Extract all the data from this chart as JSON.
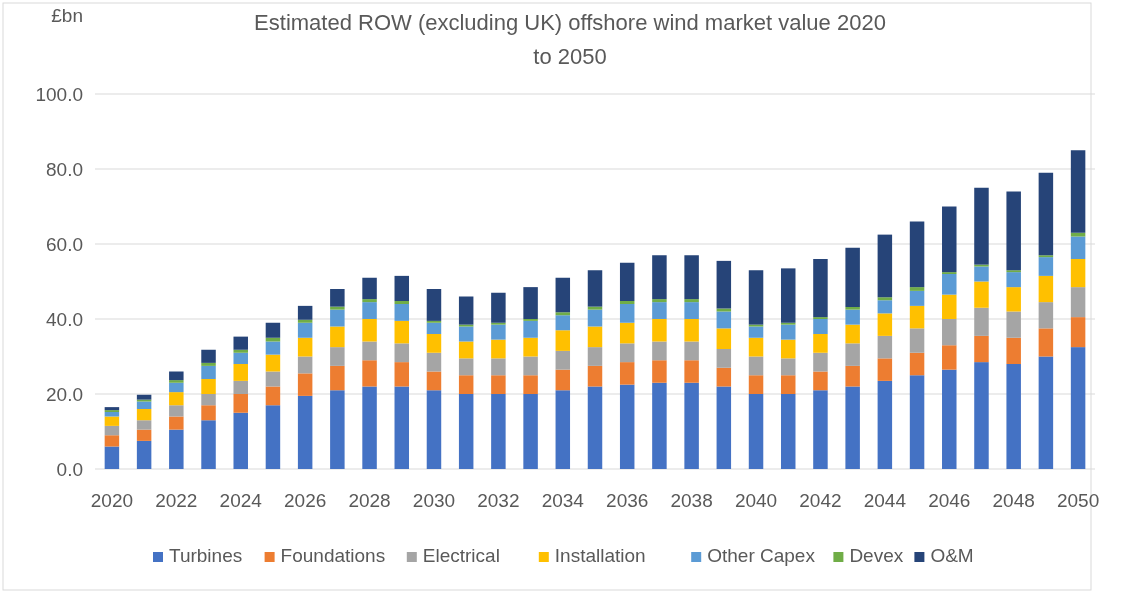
{
  "chart_data": {
    "type": "bar",
    "stacked": true,
    "title": "Estimated ROW (excluding UK) offshore wind market value 2020 to 2050",
    "ylabel": "£bn",
    "categories": [
      "2020",
      null,
      "2022",
      null,
      "2024",
      null,
      "2026",
      null,
      "2028",
      null,
      "2030",
      null,
      "2032",
      null,
      "2034",
      null,
      "2036",
      null,
      "2038",
      null,
      "2040",
      null,
      "2042",
      null,
      "2044",
      null,
      "2046",
      null,
      "2048",
      null,
      "2050"
    ],
    "series": [
      {
        "name": "Turbines",
        "color": "#4472c4",
        "values": [
          6,
          7.5,
          10.5,
          13,
          15,
          17,
          19.5,
          21,
          22,
          22,
          21,
          20,
          20,
          20,
          21,
          22,
          22.5,
          23,
          23,
          22,
          20,
          20,
          21,
          22,
          23.5,
          25,
          26.5,
          28.5,
          28,
          30,
          32.5
        ]
      },
      {
        "name": "Foundations",
        "color": "#ed7d31",
        "values": [
          3,
          3,
          3.5,
          4,
          5,
          5,
          6,
          6.5,
          7,
          6.5,
          5,
          5,
          5,
          5,
          5.5,
          5.5,
          6,
          6,
          6,
          5,
          5,
          5,
          5,
          5.5,
          6,
          6,
          6.5,
          7,
          7,
          7.5,
          8
        ]
      },
      {
        "name": "Electrical",
        "color": "#a5a5a5",
        "values": [
          2.5,
          2.5,
          3,
          3,
          3.5,
          4,
          4.5,
          5,
          5,
          5,
          5,
          4.5,
          4.5,
          5,
          5,
          5,
          5,
          5,
          5,
          5,
          5,
          4.5,
          5,
          6,
          6,
          6.5,
          7,
          7.5,
          7,
          7,
          8
        ]
      },
      {
        "name": "Installation",
        "color": "#ffc000",
        "values": [
          2.5,
          3,
          3.5,
          4,
          4.5,
          4.5,
          5,
          5.5,
          6,
          6,
          5,
          4.5,
          5,
          5,
          5.5,
          5.5,
          5.5,
          6,
          6,
          5.5,
          5,
          5,
          5,
          5,
          6,
          6,
          6.5,
          7,
          6.5,
          7,
          7.5
        ]
      },
      {
        "name": "Other Capex",
        "color": "#5b9bd5",
        "values": [
          1.2,
          2,
          2.5,
          3.5,
          3,
          3.5,
          4,
          4.5,
          4.5,
          4.5,
          3,
          4,
          4,
          4.5,
          4,
          4.5,
          5,
          4.5,
          4.5,
          4.5,
          3,
          4,
          4,
          4,
          3.5,
          4,
          5.5,
          4,
          4,
          5,
          6
        ]
      },
      {
        "name": "Devex",
        "color": "#70ad47",
        "values": [
          0.5,
          0.5,
          0.7,
          0.8,
          0.8,
          1,
          0.8,
          0.8,
          0.8,
          0.8,
          0.5,
          0.5,
          0.5,
          0.5,
          0.8,
          0.8,
          0.8,
          0.8,
          0.8,
          0.8,
          0.5,
          0.5,
          0.5,
          0.7,
          0.8,
          1,
          0.5,
          0.5,
          0.5,
          0.5,
          1
        ]
      },
      {
        "name": "O&M",
        "color": "#264478",
        "values": [
          0.8,
          1.3,
          2.3,
          3.5,
          3.5,
          4,
          3.7,
          4.7,
          5.7,
          6.7,
          8.5,
          7.5,
          8,
          8.5,
          9.2,
          9.7,
          10.2,
          11.7,
          11.7,
          12.7,
          14.5,
          14.5,
          15.5,
          15.8,
          16.7,
          17.5,
          17.5,
          20.5,
          21,
          22,
          22
        ]
      }
    ],
    "ylim": [
      0,
      100
    ],
    "yticks": [
      {
        "value": 0,
        "label": "0.0"
      },
      {
        "value": 20,
        "label": "20.0"
      },
      {
        "value": 40,
        "label": "40.0"
      },
      {
        "value": 60,
        "label": "60.0"
      },
      {
        "value": 80,
        "label": "80.0"
      },
      {
        "value": 100,
        "label": "100.0"
      }
    ],
    "grid": "y",
    "legend": "bottom"
  }
}
